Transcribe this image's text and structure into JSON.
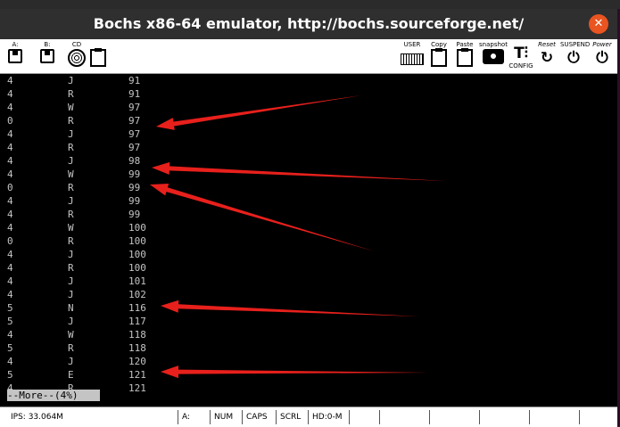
{
  "window": {
    "title": "Bochs x86-64 emulator, http://bochs.sourceforge.net/",
    "close_glyph": "✕"
  },
  "toolbar": {
    "floppy_a": "A:",
    "floppy_b": "B:",
    "cdrom": "CD",
    "user": "USER",
    "copy": "Copy",
    "paste": "Paste",
    "snapshot": "snapshot",
    "config": "CONFIG",
    "reset": "Reset",
    "suspend": "SUSPEND",
    "power": "Power"
  },
  "terminal": {
    "rows": [
      [
        "4",
        "J",
        "91"
      ],
      [
        "4",
        "R",
        "91"
      ],
      [
        "4",
        "W",
        "97"
      ],
      [
        "0",
        "R",
        "97"
      ],
      [
        "4",
        "J",
        "97"
      ],
      [
        "4",
        "R",
        "97"
      ],
      [
        "4",
        "J",
        "98"
      ],
      [
        "4",
        "W",
        "99"
      ],
      [
        "0",
        "R",
        "99"
      ],
      [
        "4",
        "J",
        "99"
      ],
      [
        "4",
        "R",
        "99"
      ],
      [
        "4",
        "W",
        "100"
      ],
      [
        "0",
        "R",
        "100"
      ],
      [
        "4",
        "J",
        "100"
      ],
      [
        "4",
        "R",
        "100"
      ],
      [
        "4",
        "J",
        "101"
      ],
      [
        "4",
        "J",
        "102"
      ],
      [
        "5",
        "N",
        "116"
      ],
      [
        "5",
        "J",
        "117"
      ],
      [
        "4",
        "W",
        "118"
      ],
      [
        "5",
        "R",
        "118"
      ],
      [
        "4",
        "J",
        "120"
      ],
      [
        "5",
        "E",
        "121"
      ],
      [
        "4",
        "R",
        "121"
      ]
    ],
    "more_prompt": "--More--(4%)"
  },
  "annotation_color": "#e8201c",
  "statusbar": {
    "ips": "IPS: 33.064M",
    "drive": "A:",
    "num": "NUM",
    "caps": "CAPS",
    "scrl": "SCRL",
    "hd": "HD:0-M"
  }
}
